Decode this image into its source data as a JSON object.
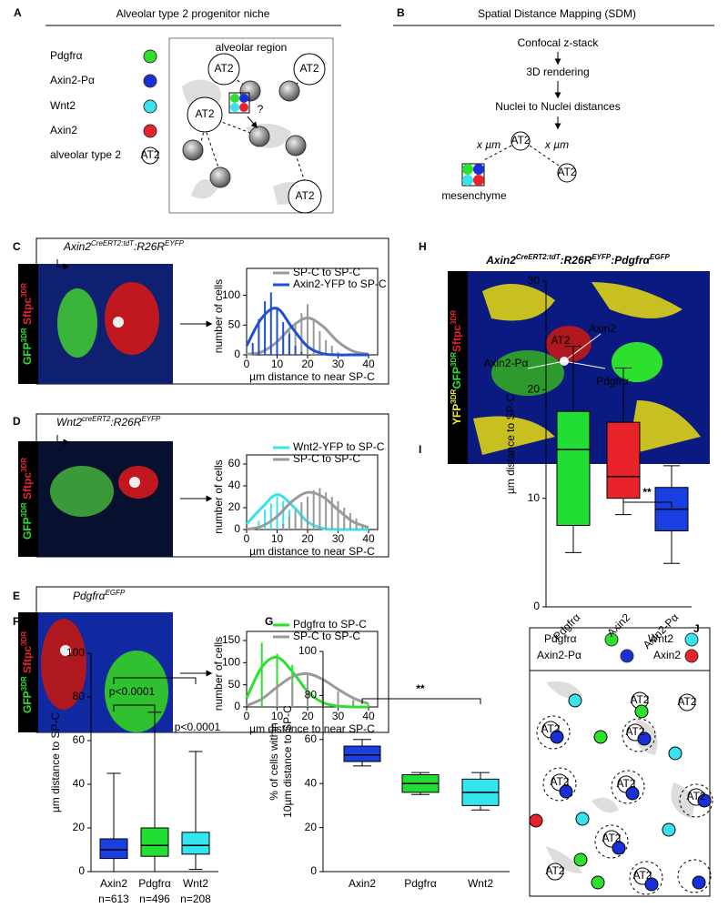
{
  "panel_letters": [
    "A",
    "B",
    "C",
    "D",
    "E",
    "F",
    "G",
    "H",
    "I",
    "J"
  ],
  "panel_a": {
    "title": "Alveolar type 2 progenitor niche",
    "legend": [
      {
        "label": "Pdgfrα",
        "color": "#2ee02e"
      },
      {
        "label": "Axin2-Pα",
        "color": "#1a2fd6"
      },
      {
        "label": "Wnt2",
        "color": "#38e3ee"
      },
      {
        "label": "Axin2",
        "color": "#e8232a"
      }
    ],
    "at2_legend": "alveolar type 2",
    "at2_icon": "AT2",
    "region_label": "alveolar region",
    "cell_labels": [
      "AT2",
      "AT2",
      "AT2",
      "AT2"
    ],
    "question": "?"
  },
  "panel_b": {
    "title": "Spatial Distance Mapping (SDM)",
    "steps": [
      "Confocal z-stack",
      "3D rendering",
      "Nuclei to Nuclei distances"
    ],
    "distance_labels": [
      "x µm",
      "x µm"
    ],
    "at2_labels": [
      "AT2",
      "AT2"
    ],
    "mesenchyme_label": "mesenchyme"
  },
  "image_panels": [
    {
      "genotype": [
        {
          "text": "Axin2"
        },
        {
          "text": "CreERT2:tdT",
          "sup": true
        },
        {
          "text": ":R26R"
        },
        {
          "text": "EYFP",
          "sup": true
        }
      ],
      "stain": [
        {
          "text": "GFP",
          "color": "#2ee02e"
        },
        {
          "text": "3DR",
          "sup": true,
          "color": "#2ee02e"
        },
        {
          "text": " Sftpc",
          "color": "#e8232a"
        },
        {
          "text": "3DR",
          "sup": true,
          "color": "#e8232a"
        }
      ]
    },
    {
      "genotype": [
        {
          "text": "Wnt2"
        },
        {
          "text": "creERT2",
          "sup": true
        },
        {
          "text": ":R26R"
        },
        {
          "text": "EYFP",
          "sup": true
        }
      ],
      "stain": [
        {
          "text": "GFP",
          "color": "#2ee02e"
        },
        {
          "text": "3DR",
          "sup": true,
          "color": "#2ee02e"
        },
        {
          "text": " Sftpc",
          "color": "#e8232a"
        },
        {
          "text": "3DR",
          "sup": true,
          "color": "#e8232a"
        }
      ]
    },
    {
      "genotype": [
        {
          "text": "Pdgfrα"
        },
        {
          "text": "EGFP",
          "sup": true
        }
      ],
      "stain": [
        {
          "text": "GFP",
          "color": "#2ee02e"
        },
        {
          "text": "3DR",
          "sup": true,
          "color": "#2ee02e"
        },
        {
          "text": " Sftpc",
          "color": "#e8232a"
        },
        {
          "text": "3DR",
          "sup": true,
          "color": "#e8232a"
        }
      ]
    }
  ],
  "panel_h": {
    "genotype": [
      {
        "text": "Axin2"
      },
      {
        "text": "CreERT2:tdT",
        "sup": true
      },
      {
        "text": ":R26R"
      },
      {
        "text": "EYFP",
        "sup": true
      },
      {
        "text": ":Pdgfrα"
      },
      {
        "text": "EGFP",
        "sup": true
      }
    ],
    "stain": [
      {
        "text": "YFP",
        "color": "#f0e830"
      },
      {
        "text": "3DR",
        "sup": true,
        "color": "#f0e830"
      },
      {
        "text": "GFP",
        "color": "#2ee02e"
      },
      {
        "text": "3DR",
        "sup": true,
        "color": "#2ee02e"
      },
      {
        "text": "Sftpc",
        "color": "#e8232a"
      },
      {
        "text": "3DR",
        "sup": true,
        "color": "#e8232a"
      }
    ],
    "cell_labels": [
      "Axin2",
      "AT2",
      "Axin2-Pα",
      "Pdgfrα"
    ]
  },
  "panel_j": {
    "legend": [
      {
        "label": "Pdgfrα",
        "color": "#2ee02e"
      },
      {
        "label": "Wnt2",
        "color": "#38e3ee"
      },
      {
        "label": "Axin2-Pα",
        "color": "#1a2fd6"
      },
      {
        "label": "Axin2",
        "color": "#e8232a"
      }
    ],
    "at2_labels": [
      "AT2",
      "AT2",
      "AT2",
      "AT2",
      "AT2",
      "AT2",
      "AT2",
      "AT2",
      "AT2",
      "AT2"
    ]
  },
  "chart_data": [
    {
      "type": "histogram",
      "xlabel": "µm distance to near SP-C",
      "ylabel": "number of cells",
      "xlim": [
        0,
        40
      ],
      "xticks": [
        0,
        10,
        20,
        30,
        40
      ],
      "ylim": [
        0,
        130
      ],
      "yticks": [
        0,
        50,
        100
      ],
      "series": [
        {
          "name": "SP-C to SP-C",
          "color": "#9a9a9a",
          "bar_x": [
            10,
            12,
            14,
            16,
            18,
            20,
            22,
            24,
            26,
            28,
            30
          ],
          "bar_values": [
            10,
            30,
            45,
            55,
            70,
            85,
            60,
            40,
            25,
            15,
            5
          ],
          "fit_x": [
            0,
            5,
            10,
            15,
            20,
            25,
            30,
            35,
            40
          ],
          "fit_values": [
            1,
            5,
            22,
            48,
            62,
            48,
            22,
            6,
            1
          ]
        },
        {
          "name": "Axin2-YFP to SP-C",
          "color": "#1f4fd8",
          "bar_x": [
            2,
            4,
            6,
            8,
            10,
            12,
            14,
            16,
            18
          ],
          "bar_values": [
            20,
            60,
            90,
            105,
            80,
            55,
            35,
            15,
            5
          ],
          "fit_x": [
            0,
            5,
            10,
            15,
            20,
            25,
            30,
            35,
            40
          ],
          "fit_values": [
            15,
            62,
            78,
            45,
            14,
            2,
            0,
            0,
            0
          ]
        }
      ]
    },
    {
      "type": "histogram",
      "xlabel": "µm distance to near SP-C",
      "ylabel": "number of cells",
      "xlim": [
        0,
        40
      ],
      "xticks": [
        0,
        10,
        20,
        30,
        40
      ],
      "ylim": [
        0,
        60
      ],
      "yticks": [
        0,
        20,
        40,
        60
      ],
      "series": [
        {
          "name": "Wnt2-YFP to SP-C",
          "color": "#38e3ee",
          "bar_x": [
            4,
            6,
            8,
            10,
            12,
            14,
            16
          ],
          "bar_values": [
            8,
            18,
            24,
            30,
            26,
            18,
            8
          ],
          "fit_x": [
            0,
            5,
            10,
            15,
            20,
            25,
            30,
            35,
            40
          ],
          "fit_values": [
            5,
            20,
            32,
            22,
            7,
            1,
            0,
            0,
            0
          ]
        },
        {
          "name": "SP-C to SP-C",
          "color": "#9a9a9a",
          "bar_x": [
            12,
            14,
            16,
            18,
            20,
            22,
            24,
            26,
            28,
            30,
            32,
            34,
            36,
            38
          ],
          "bar_values": [
            5,
            12,
            18,
            25,
            30,
            36,
            38,
            34,
            30,
            26,
            20,
            15,
            10,
            5
          ],
          "fit_x": [
            0,
            5,
            10,
            15,
            20,
            25,
            30,
            35,
            40
          ],
          "fit_values": [
            0,
            3,
            12,
            26,
            34,
            30,
            18,
            7,
            2
          ]
        }
      ]
    },
    {
      "type": "histogram",
      "xlabel": "µm distance to near SP-C",
      "ylabel": "number of cells",
      "xlim": [
        0,
        40
      ],
      "xticks": [
        0,
        10,
        20,
        30,
        40
      ],
      "ylim": [
        0,
        150
      ],
      "yticks": [
        0,
        50,
        100,
        150
      ],
      "series": [
        {
          "name": "Pdgfrα to SP-C",
          "color": "#2ee02e",
          "bar_x": [
            5,
            10,
            15,
            20,
            25,
            30,
            35,
            40
          ],
          "bar_values": [
            145,
            120,
            95,
            65,
            45,
            30,
            15,
            5
          ],
          "fit_x": [
            0,
            5,
            10,
            15,
            20,
            25,
            30,
            35,
            40
          ],
          "fit_values": [
            20,
            90,
            112,
            80,
            35,
            10,
            2,
            0,
            0
          ]
        },
        {
          "name": "SP-C to SP-C",
          "color": "#9a9a9a",
          "bar_x": [
            10,
            15,
            20,
            25,
            30,
            35
          ],
          "bar_values": [
            40,
            55,
            75,
            60,
            35,
            15
          ],
          "fit_x": [
            0,
            5,
            10,
            15,
            20,
            25,
            30,
            35,
            40
          ],
          "fit_values": [
            3,
            18,
            45,
            68,
            75,
            62,
            40,
            20,
            7
          ]
        }
      ]
    },
    {
      "type": "box",
      "ylabel": [
        "µm distance to SP-C"
      ],
      "ylim": [
        0,
        100
      ],
      "yticks": [
        0,
        20,
        40,
        60,
        80,
        100
      ],
      "categories": [
        "Axin2",
        "Pdgfrα",
        "Wnt2"
      ],
      "n_labels": [
        "n=613",
        "n=496",
        "n=208"
      ],
      "colors": [
        "#1a3fe0",
        "#22dd33",
        "#33e5ee"
      ],
      "boxes": [
        {
          "min": 0,
          "q1": 6,
          "median": 10,
          "q3": 15,
          "max": 45
        },
        {
          "min": 0,
          "q1": 7,
          "median": 12,
          "q3": 20,
          "max": 73
        },
        {
          "min": 1,
          "q1": 8,
          "median": 12,
          "q3": 18,
          "max": 55
        }
      ],
      "significance": [
        "p<0.0001",
        "p<0.0001"
      ]
    },
    {
      "type": "box",
      "ylabel": [
        "% of cells within",
        "10µm distance to SP-C"
      ],
      "ylim": [
        0,
        100
      ],
      "yticks": [
        0,
        20,
        40,
        60,
        80,
        100
      ],
      "categories": [
        "Axin2",
        "Pdgfrα",
        "Wnt2"
      ],
      "colors": [
        "#1a3fe0",
        "#22dd33",
        "#33e5ee"
      ],
      "boxes": [
        {
          "min": 48,
          "q1": 50,
          "median": 53,
          "q3": 57,
          "max": 60
        },
        {
          "min": 35,
          "q1": 36,
          "median": 40,
          "q3": 44,
          "max": 45
        },
        {
          "min": 28,
          "q1": 30,
          "median": 36,
          "q3": 42,
          "max": 45
        }
      ],
      "significance": [
        "**"
      ]
    },
    {
      "type": "box",
      "ylabel": [
        "µm distance to SP-C"
      ],
      "ylim": [
        0,
        30
      ],
      "yticks": [
        0,
        10,
        20,
        30
      ],
      "categories": [
        "Pdgfrα",
        "Axin2",
        "Axin2-Pα"
      ],
      "colors": [
        "#22dd33",
        "#e8232a",
        "#1a3fe0"
      ],
      "boxes": [
        {
          "min": 5,
          "q1": 7.5,
          "median": 14.5,
          "q3": 18,
          "max": 24
        },
        {
          "min": 8.5,
          "q1": 10,
          "median": 12,
          "q3": 17,
          "max": 22
        },
        {
          "min": 4,
          "q1": 7,
          "median": 9,
          "q3": 11,
          "max": 13
        }
      ],
      "significance": [
        "**"
      ]
    }
  ]
}
